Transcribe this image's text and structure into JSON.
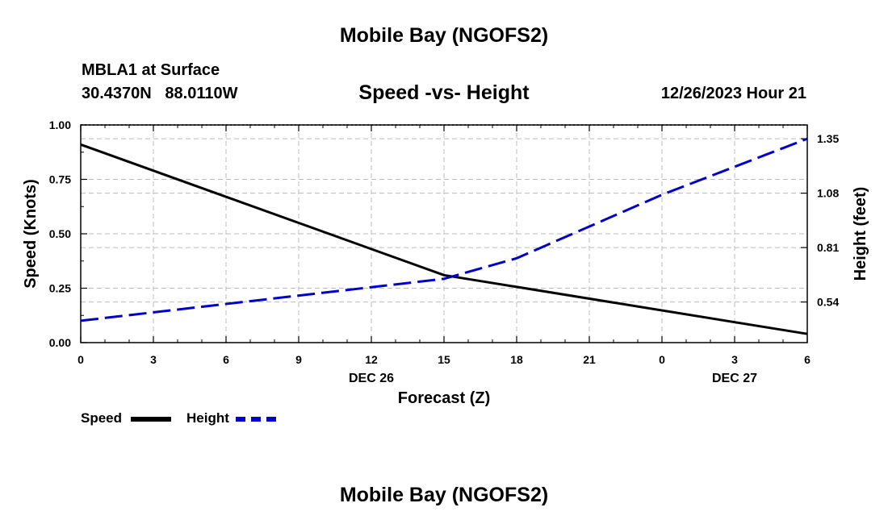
{
  "header": {
    "title": "Mobile Bay (NGOFS2)",
    "station": "MBLA1 at Surface",
    "coords": "30.4370N   88.0110W",
    "subtitle": "Speed -vs- Height",
    "datetime": "12/26/2023 Hour 21"
  },
  "footer": {
    "title": "Mobile Bay (NGOFS2)"
  },
  "legend": {
    "speed_label": "Speed",
    "height_label": "Height"
  },
  "colors": {
    "speed": "#000000",
    "height": "#0000cc",
    "grid": "#bbbbbb"
  },
  "chart_data": {
    "type": "line",
    "title": "Speed -vs- Height",
    "xlabel": "Forecast (Z)",
    "ylabel": "Speed (Knots)",
    "y2label": "Height (feet)",
    "x_hours_range": [
      0,
      30
    ],
    "x_ticks": [
      {
        "hour": 0,
        "label": "0"
      },
      {
        "hour": 3,
        "label": "3"
      },
      {
        "hour": 6,
        "label": "6"
      },
      {
        "hour": 9,
        "label": "9"
      },
      {
        "hour": 12,
        "label": "12"
      },
      {
        "hour": 15,
        "label": "15"
      },
      {
        "hour": 18,
        "label": "18"
      },
      {
        "hour": 21,
        "label": "21"
      },
      {
        "hour": 24,
        "label": "0"
      },
      {
        "hour": 27,
        "label": "3"
      },
      {
        "hour": 30,
        "label": "6"
      }
    ],
    "x_date_labels": [
      {
        "hour": 12,
        "label": "DEC 26"
      },
      {
        "hour": 27,
        "label": "DEC 27"
      }
    ],
    "ylim": [
      0,
      1.0
    ],
    "y_ticks": [
      {
        "value": 0.0,
        "label": "0.00"
      },
      {
        "value": 0.25,
        "label": "0.25"
      },
      {
        "value": 0.5,
        "label": "0.50"
      },
      {
        "value": 0.75,
        "label": "0.75"
      },
      {
        "value": 1.0,
        "label": "1.00"
      }
    ],
    "y2lim": [
      0.3384,
      1.4184
    ],
    "y2_ticks": [
      {
        "value": 0.54,
        "label": "0.54"
      },
      {
        "value": 0.81,
        "label": "0.81"
      },
      {
        "value": 1.08,
        "label": "1.08"
      },
      {
        "value": 1.35,
        "label": "1.35"
      }
    ],
    "series": [
      {
        "name": "Speed",
        "axis": "left",
        "style": "solid",
        "x": [
          0,
          15,
          30
        ],
        "values": [
          0.91,
          0.31,
          0.04
        ]
      },
      {
        "name": "Height",
        "axis": "right",
        "style": "dashed",
        "x": [
          0,
          15,
          18,
          24,
          30
        ],
        "values": [
          0.447,
          0.655,
          0.757,
          1.072,
          1.35
        ]
      }
    ]
  }
}
